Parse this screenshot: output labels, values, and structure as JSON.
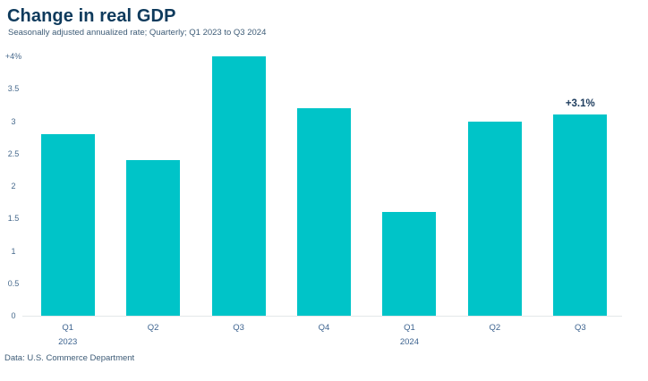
{
  "header": {
    "title": "Change in real GDP",
    "subtitle": "Seasonally adjusted annualized rate; Quarterly; Q1 2023 to Q3 2024"
  },
  "chart_data": {
    "type": "bar",
    "title": "Change in real GDP",
    "subtitle": "Seasonally adjusted annualized rate; Quarterly; Q1 2023 to Q3 2024",
    "categories": [
      "Q1",
      "Q2",
      "Q3",
      "Q4",
      "Q1",
      "Q2",
      "Q3"
    ],
    "year_labels": [
      {
        "index": 0,
        "label": "2023"
      },
      {
        "index": 4,
        "label": "2024"
      }
    ],
    "values": [
      2.8,
      2.4,
      4.0,
      3.2,
      1.6,
      3.0,
      3.1
    ],
    "unit": "%",
    "ylim": [
      0,
      4
    ],
    "yticks": [
      0,
      0.5,
      1,
      1.5,
      2,
      2.5,
      3,
      3.5,
      4
    ],
    "ytick_labels": [
      "0",
      "0.5",
      "1",
      "1.5",
      "2",
      "2.5",
      "3",
      "3.5",
      "+4%"
    ],
    "xlabel": "",
    "ylabel": "",
    "grid": false,
    "legend": false,
    "bar_color": "#00C4C8",
    "annotation": {
      "text": "+3.1%",
      "bar_index": 6
    }
  },
  "colors": {
    "bar_teal": "#00C4C8",
    "title_navy": "#0E3A5C",
    "label_blue": "#46698C",
    "axis_line": "#E4E7E9"
  },
  "footer": {
    "source": "Data: U.S. Commerce Department"
  }
}
